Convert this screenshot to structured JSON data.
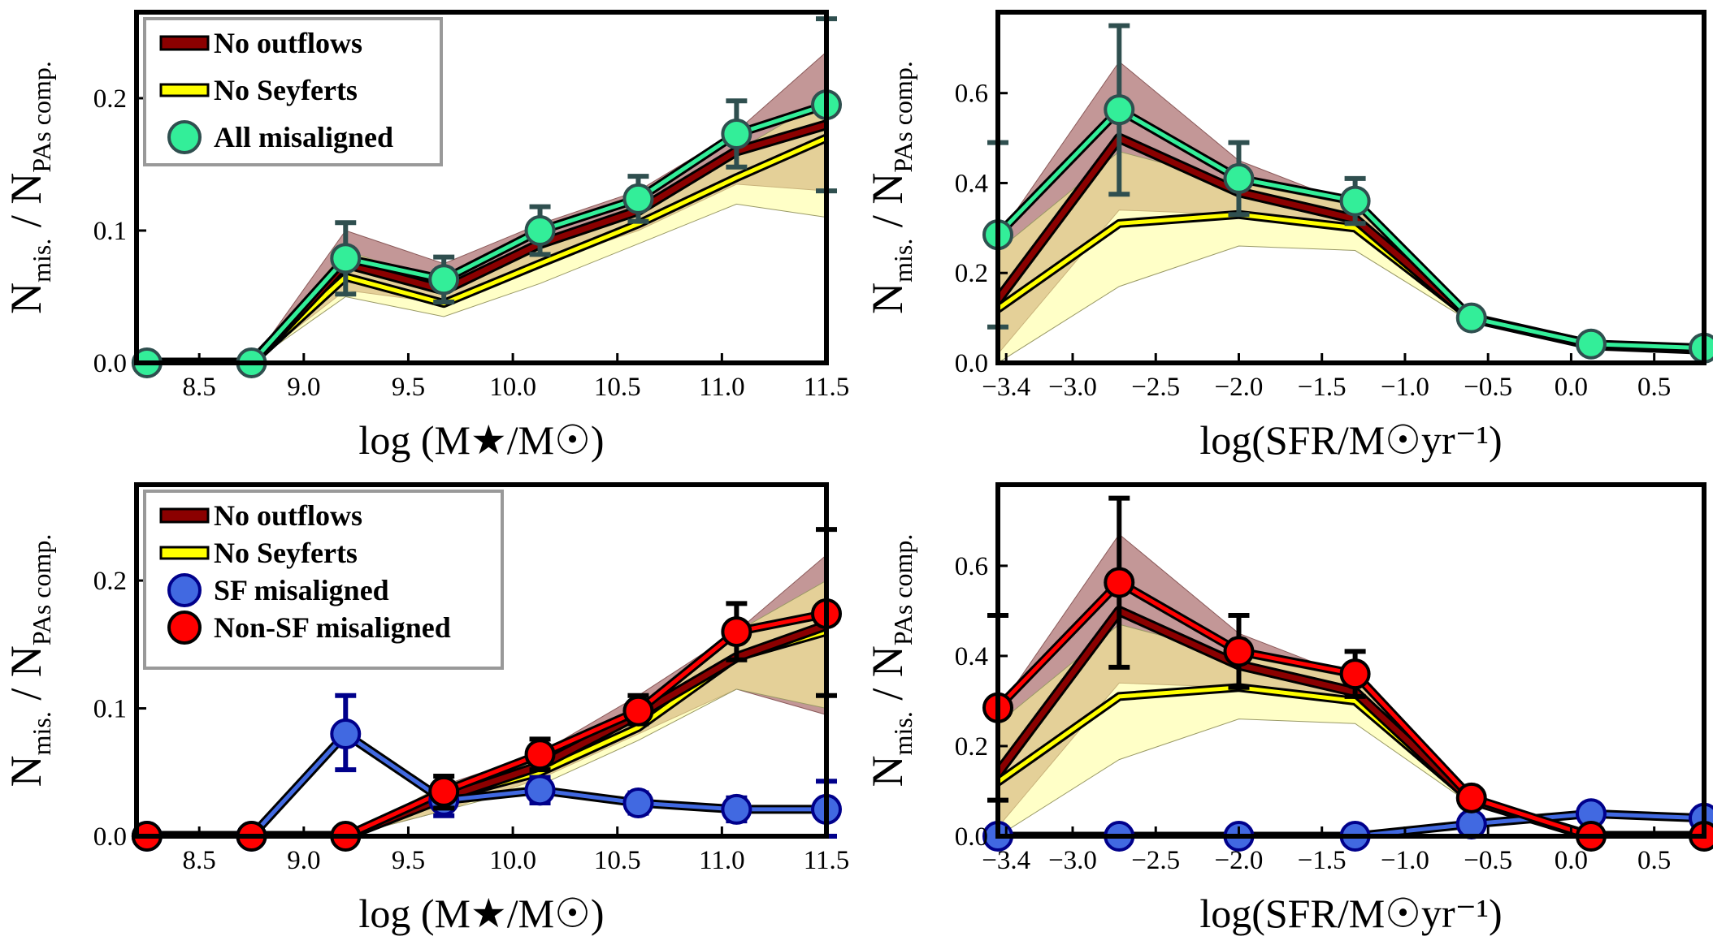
{
  "colors": {
    "outflow_fill": "#b98585",
    "seyfert_fill": "#ffff99",
    "outflow_line": "#8b0000",
    "seyfert_line": "#ffff00",
    "all_mis": "#33ee99",
    "all_err": "#2f4f4f",
    "sf": "#4169e1",
    "sf_err": "#00008b",
    "nonsf": "#ff0000",
    "nonsf_err": "#000000",
    "legend_border": "#999999"
  },
  "chart_data": [
    {
      "id": "tl",
      "type": "line",
      "xlabel": "log (M★/M☉)",
      "ylabel_main": "N",
      "ylabel_sub1": "mis.",
      "ylabel_mid": " / N",
      "ylabel_sub2": "PAs comp.",
      "xlim": [
        8.2,
        11.5
      ],
      "ylim": [
        0,
        0.265
      ],
      "xticks": [
        8.5,
        9.0,
        9.5,
        10.0,
        10.5,
        11.0,
        11.5
      ],
      "xtick_labels": [
        "8.5",
        "9.0",
        "9.5",
        "10.0",
        "10.5",
        "11.0",
        "11.5"
      ],
      "yticks": [
        0,
        0.1,
        0.2
      ],
      "ytick_labels": [
        "0.0",
        "0.1",
        "0.2"
      ],
      "x": [
        8.25,
        8.75,
        9.2,
        9.67,
        10.13,
        10.6,
        11.07,
        11.5
      ],
      "outflows": {
        "mid": [
          0,
          0,
          0.075,
          0.055,
          0.09,
          0.115,
          0.16,
          0.18
        ],
        "lo": [
          0,
          0,
          0.055,
          0.045,
          0.075,
          0.1,
          0.135,
          0.13
        ],
        "hi": [
          0,
          0,
          0.1,
          0.075,
          0.105,
          0.13,
          0.175,
          0.235
        ]
      },
      "seyferts": {
        "mid": [
          0,
          0,
          0.065,
          0.045,
          0.075,
          0.105,
          0.14,
          0.17
        ],
        "lo": [
          0,
          0,
          0.05,
          0.035,
          0.06,
          0.09,
          0.12,
          0.11
        ],
        "hi": [
          0,
          0,
          0.085,
          0.06,
          0.09,
          0.12,
          0.16,
          0.2
        ]
      },
      "points_series": [
        {
          "name": "All misaligned",
          "face": "#33ee99",
          "err": "#2f4f4f",
          "values": [
            0,
            0,
            0.079,
            0.063,
            0.1,
            0.124,
            0.173,
            0.195
          ],
          "err_lo": [
            0,
            0,
            0.052,
            0.046,
            0.082,
            0.107,
            0.148,
            0.13
          ],
          "err_hi": [
            0,
            0,
            0.106,
            0.08,
            0.118,
            0.141,
            0.198,
            0.26
          ]
        }
      ],
      "legend": {
        "placement": "top-left",
        "entries": [
          {
            "kind": "outflows",
            "label": "No outflows"
          },
          {
            "kind": "seyferts",
            "label": "No Seyferts"
          },
          {
            "kind": "marker",
            "label": "All misaligned",
            "face": "#33ee99",
            "edge": "#2f4f4f"
          }
        ]
      }
    },
    {
      "id": "tr",
      "type": "line",
      "xlabel": "log(SFR/M☉yr⁻¹)",
      "ylabel_main": "N",
      "ylabel_sub1": "mis.",
      "ylabel_mid": " / N",
      "ylabel_sub2": "PAs comp.",
      "xlim": [
        -3.45,
        0.8
      ],
      "ylim": [
        0,
        0.78
      ],
      "xticks": [
        -3.4,
        -3.0,
        -2.5,
        -2.0,
        -1.5,
        -1.0,
        -0.5,
        0.0,
        0.5
      ],
      "xtick_labels": [
        "−3.4",
        "−3.0",
        "−2.5",
        "−2.0",
        "−1.5",
        "−1.0",
        "−0.5",
        "0.0",
        "0.5"
      ],
      "yticks": [
        0,
        0.2,
        0.4,
        0.6
      ],
      "ytick_labels": [
        "0.0",
        "0.2",
        "0.4",
        "0.6"
      ],
      "x": [
        -3.45,
        -2.72,
        -2.0,
        -1.3,
        -0.6,
        0.12,
        0.8
      ],
      "outflows": {
        "mid": [
          0.14,
          0.5,
          0.38,
          0.32,
          0.1,
          0.04,
          0.03
        ],
        "lo": [
          0.02,
          0.34,
          0.33,
          0.29,
          0.09,
          0.03,
          0.02
        ],
        "hi": [
          0.28,
          0.67,
          0.45,
          0.35,
          0.11,
          0.05,
          0.04
        ]
      },
      "seyferts": {
        "mid": [
          0.12,
          0.31,
          0.33,
          0.3,
          0.1,
          0.04,
          0.03
        ],
        "lo": [
          0.0,
          0.17,
          0.26,
          0.25,
          0.09,
          0.03,
          0.02
        ],
        "hi": [
          0.25,
          0.47,
          0.4,
          0.35,
          0.11,
          0.05,
          0.04
        ]
      },
      "points_series": [
        {
          "name": "All misaligned",
          "face": "#33ee99",
          "err": "#2f4f4f",
          "values": [
            0.285,
            0.563,
            0.41,
            0.36,
            0.1,
            0.042,
            0.033
          ],
          "err_lo": [
            0.08,
            0.375,
            0.33,
            0.31,
            0.1,
            0.042,
            0.033
          ],
          "err_hi": [
            0.49,
            0.75,
            0.49,
            0.41,
            0.1,
            0.042,
            0.033
          ]
        }
      ],
      "legend": null
    },
    {
      "id": "bl",
      "type": "line",
      "xlabel": "log (M★/M☉)",
      "ylabel_main": "N",
      "ylabel_sub1": "mis.",
      "ylabel_mid": " / N",
      "ylabel_sub2": "PAs comp.",
      "xlim": [
        8.2,
        11.5
      ],
      "ylim": [
        0,
        0.275
      ],
      "xticks": [
        8.5,
        9.0,
        9.5,
        10.0,
        10.5,
        11.0,
        11.5
      ],
      "xtick_labels": [
        "8.5",
        "9.0",
        "9.5",
        "10.0",
        "10.5",
        "11.0",
        "11.5"
      ],
      "yticks": [
        0,
        0.1,
        0.2
      ],
      "ytick_labels": [
        "0.0",
        "0.1",
        "0.2"
      ],
      "x": [
        8.25,
        8.75,
        9.2,
        9.67,
        10.13,
        10.6,
        11.07,
        11.5
      ],
      "outflows": {
        "mid": [
          0,
          0,
          0,
          0.03,
          0.055,
          0.095,
          0.14,
          0.165
        ],
        "lo": [
          0,
          0,
          0,
          0.02,
          0.045,
          0.08,
          0.115,
          0.095
        ],
        "hi": [
          0,
          0,
          0,
          0.04,
          0.065,
          0.11,
          0.16,
          0.22
        ]
      },
      "seyferts": {
        "mid": [
          0,
          0,
          0,
          0.03,
          0.05,
          0.085,
          0.14,
          0.16
        ],
        "lo": [
          0,
          0,
          0,
          0.02,
          0.04,
          0.075,
          0.115,
          0.1
        ],
        "hi": [
          0,
          0,
          0,
          0.04,
          0.06,
          0.1,
          0.16,
          0.2
        ]
      },
      "points_series": [
        {
          "name": "SF misaligned",
          "face": "#4169e1",
          "err": "#00008b",
          "values": [
            0,
            0,
            0.08,
            0.028,
            0.036,
            0.026,
            0.021,
            0.021
          ],
          "err_lo": [
            0,
            0,
            0.052,
            0.016,
            0.026,
            0.018,
            0.012,
            0.0
          ],
          "err_hi": [
            0,
            0,
            0.11,
            0.04,
            0.046,
            0.034,
            0.03,
            0.043
          ]
        },
        {
          "name": "Non-SF misaligned",
          "face": "#ff0000",
          "err": "#000000",
          "values": [
            0,
            0,
            0,
            0.035,
            0.064,
            0.098,
            0.16,
            0.174
          ],
          "err_lo": [
            0,
            0,
            0,
            0.022,
            0.052,
            0.088,
            0.138,
            0.11
          ],
          "err_hi": [
            0,
            0,
            0,
            0.047,
            0.076,
            0.11,
            0.182,
            0.24
          ]
        }
      ],
      "legend": {
        "placement": "top-left",
        "entries": [
          {
            "kind": "outflows",
            "label": "No outflows"
          },
          {
            "kind": "seyferts",
            "label": "No Seyferts"
          },
          {
            "kind": "marker",
            "label": "SF misaligned",
            "face": "#4169e1",
            "edge": "#00008b"
          },
          {
            "kind": "marker",
            "label": "Non-SF misaligned",
            "face": "#ff0000",
            "edge": "#000000"
          }
        ]
      }
    },
    {
      "id": "br",
      "type": "line",
      "xlabel": "log(SFR/M☉yr⁻¹)",
      "ylabel_main": "N",
      "ylabel_sub1": "mis.",
      "ylabel_mid": " / N",
      "ylabel_sub2": "PAs comp.",
      "xlim": [
        -3.45,
        0.8
      ],
      "ylim": [
        0,
        0.78
      ],
      "xticks": [
        -3.4,
        -3.0,
        -2.5,
        -2.0,
        -1.5,
        -1.0,
        -0.5,
        0.0,
        0.5
      ],
      "xtick_labels": [
        "−3.4",
        "−3.0",
        "−2.5",
        "−2.0",
        "−1.5",
        "−1.0",
        "−0.5",
        "0.0",
        "0.5"
      ],
      "yticks": [
        0,
        0.2,
        0.4,
        0.6
      ],
      "ytick_labels": [
        "0.0",
        "0.2",
        "0.4",
        "0.6"
      ],
      "x": [
        -3.45,
        -2.72,
        -2.0,
        -1.3,
        -0.6,
        0.12,
        0.8
      ],
      "outflows": {
        "mid": [
          0.14,
          0.5,
          0.38,
          0.32,
          0.08,
          0.0,
          0.0
        ],
        "lo": [
          0.02,
          0.34,
          0.33,
          0.29,
          0.07,
          0.0,
          0.0
        ],
        "hi": [
          0.28,
          0.67,
          0.45,
          0.35,
          0.09,
          0.0,
          0.0
        ]
      },
      "seyferts": {
        "mid": [
          0.12,
          0.31,
          0.33,
          0.3,
          0.08,
          0.0,
          0.0
        ],
        "lo": [
          0.0,
          0.17,
          0.26,
          0.25,
          0.07,
          0.0,
          0.0
        ],
        "hi": [
          0.25,
          0.47,
          0.4,
          0.35,
          0.09,
          0.0,
          0.0
        ]
      },
      "points_series": [
        {
          "name": "SF misaligned",
          "face": "#4169e1",
          "err": "#00008b",
          "values": [
            0.0,
            0.0,
            0.0,
            0.0,
            0.027,
            0.05,
            0.04
          ],
          "err_lo": [
            0.0,
            0.0,
            0.0,
            0.0,
            0.027,
            0.05,
            0.04
          ],
          "err_hi": [
            0.0,
            0.0,
            0.0,
            0.0,
            0.027,
            0.05,
            0.04
          ]
        },
        {
          "name": "Non-SF misaligned",
          "face": "#ff0000",
          "err": "#000000",
          "values": [
            0.285,
            0.563,
            0.41,
            0.36,
            0.085,
            0.0,
            0.0
          ],
          "err_lo": [
            0.08,
            0.375,
            0.33,
            0.31,
            0.085,
            0.0,
            0.0
          ],
          "err_hi": [
            0.49,
            0.75,
            0.49,
            0.41,
            0.085,
            0.0,
            0.0
          ]
        }
      ],
      "legend": null
    }
  ]
}
